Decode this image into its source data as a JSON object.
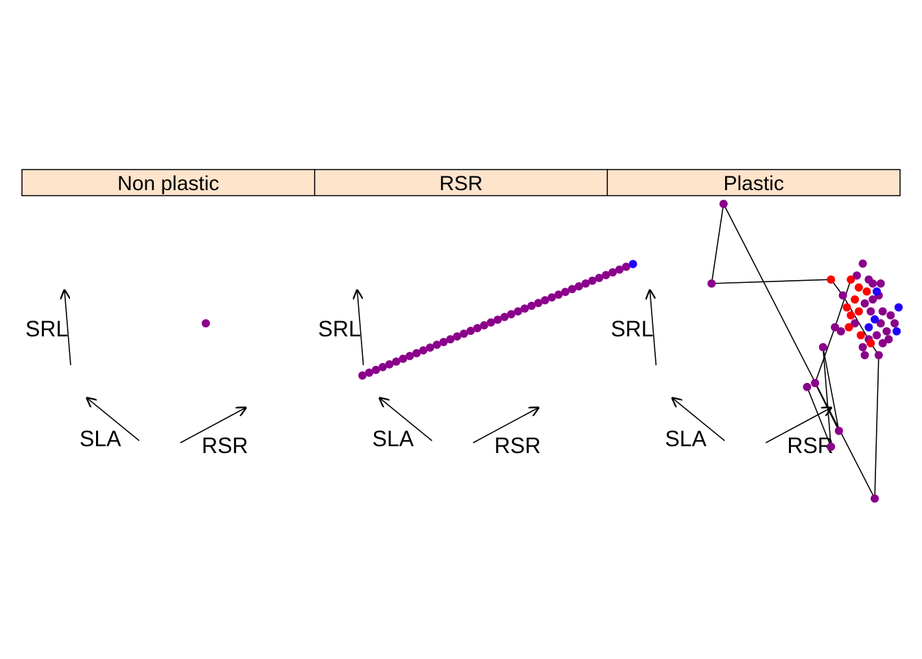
{
  "chart_data": {
    "type": "scatter",
    "colors": {
      "strip_fill": "#FFE4CC",
      "low": "#1F00FF",
      "mid": "#8B008B",
      "high": "#FF0000",
      "arrow": "#000000"
    },
    "arrow_labels": [
      "SRL",
      "SLA",
      "RSR"
    ],
    "panels": [
      {
        "strip": "Non plastic",
        "points": [
          [
            0.0,
            0.0,
            "mid"
          ]
        ],
        "path": []
      },
      {
        "strip": "RSR",
        "points": [
          [
            -0.342,
            -0.131,
            "mid"
          ],
          [
            -0.325,
            -0.124,
            "mid"
          ],
          [
            -0.308,
            -0.117,
            "mid"
          ],
          [
            -0.291,
            -0.11,
            "mid"
          ],
          [
            -0.274,
            -0.103,
            "mid"
          ],
          [
            -0.257,
            -0.096,
            "mid"
          ],
          [
            -0.24,
            -0.089,
            "mid"
          ],
          [
            -0.223,
            -0.082,
            "mid"
          ],
          [
            -0.206,
            -0.075,
            "mid"
          ],
          [
            -0.189,
            -0.068,
            "mid"
          ],
          [
            -0.172,
            -0.061,
            "mid"
          ],
          [
            -0.155,
            -0.054,
            "mid"
          ],
          [
            -0.138,
            -0.047,
            "mid"
          ],
          [
            -0.121,
            -0.04,
            "mid"
          ],
          [
            -0.104,
            -0.033,
            "mid"
          ],
          [
            -0.087,
            -0.026,
            "mid"
          ],
          [
            -0.07,
            -0.019,
            "mid"
          ],
          [
            -0.053,
            -0.012,
            "mid"
          ],
          [
            -0.036,
            -0.005,
            "mid"
          ],
          [
            -0.019,
            0.002,
            "mid"
          ],
          [
            -0.002,
            0.009,
            "mid"
          ],
          [
            0.015,
            0.016,
            "mid"
          ],
          [
            0.032,
            0.023,
            "mid"
          ],
          [
            0.049,
            0.03,
            "mid"
          ],
          [
            0.066,
            0.037,
            "mid"
          ],
          [
            0.083,
            0.044,
            "mid"
          ],
          [
            0.1,
            0.051,
            "mid"
          ],
          [
            0.117,
            0.058,
            "mid"
          ],
          [
            0.134,
            0.065,
            "mid"
          ],
          [
            0.151,
            0.072,
            "mid"
          ],
          [
            0.168,
            0.079,
            "mid"
          ],
          [
            0.185,
            0.086,
            "mid"
          ],
          [
            0.202,
            0.093,
            "mid"
          ],
          [
            0.219,
            0.1,
            "mid"
          ],
          [
            0.236,
            0.107,
            "mid"
          ],
          [
            0.253,
            0.114,
            "mid"
          ],
          [
            0.27,
            0.121,
            "mid"
          ],
          [
            0.287,
            0.128,
            "mid"
          ],
          [
            0.304,
            0.135,
            "mid"
          ],
          [
            0.321,
            0.142,
            "mid"
          ],
          [
            0.338,
            0.149,
            "low"
          ]
        ],
        "path": []
      },
      {
        "strip": "Plastic",
        "points": [
          [
            -0.17,
            0.3,
            "mid"
          ],
          [
            -0.2,
            0.1,
            "mid"
          ],
          [
            0.1,
            0.11,
            "high"
          ],
          [
            0.13,
            0.07,
            "mid"
          ],
          [
            0.04,
            -0.16,
            "mid"
          ],
          [
            0.12,
            -0.27,
            "mid"
          ],
          [
            0.1,
            -0.31,
            "mid"
          ],
          [
            0.08,
            -0.06,
            "mid"
          ],
          [
            0.06,
            -0.15,
            "mid"
          ],
          [
            0.21,
            -0.44,
            "mid"
          ],
          [
            0.18,
            0.15,
            "mid"
          ],
          [
            0.15,
            0.11,
            "high"
          ],
          [
            0.165,
            0.12,
            "mid"
          ],
          [
            0.195,
            0.11,
            "mid"
          ],
          [
            0.205,
            0.1,
            "mid"
          ],
          [
            0.225,
            0.1,
            "mid"
          ],
          [
            0.22,
            0.07,
            "mid"
          ],
          [
            0.19,
            0.08,
            "high"
          ],
          [
            0.17,
            0.09,
            "high"
          ],
          [
            0.16,
            0.06,
            "high"
          ],
          [
            0.14,
            0.04,
            "high"
          ],
          [
            0.15,
            0.02,
            "high"
          ],
          [
            0.17,
            0.03,
            "high"
          ],
          [
            0.16,
            0.0,
            "mid"
          ],
          [
            0.145,
            -0.01,
            "high"
          ],
          [
            0.125,
            -0.02,
            "mid"
          ],
          [
            0.11,
            -0.01,
            "mid"
          ],
          [
            0.175,
            -0.03,
            "high"
          ],
          [
            0.195,
            -0.04,
            "mid"
          ],
          [
            0.18,
            -0.06,
            "mid"
          ],
          [
            0.185,
            -0.08,
            "mid"
          ],
          [
            0.2,
            -0.05,
            "high"
          ],
          [
            0.215,
            -0.03,
            "mid"
          ],
          [
            0.23,
            -0.05,
            "mid"
          ],
          [
            0.24,
            -0.02,
            "mid"
          ],
          [
            0.225,
            0.0,
            "mid"
          ],
          [
            0.21,
            0.01,
            "low"
          ],
          [
            0.2,
            0.03,
            "mid"
          ],
          [
            0.23,
            0.03,
            "mid"
          ],
          [
            0.25,
            0.02,
            "mid"
          ],
          [
            0.26,
            0.0,
            "mid"
          ],
          [
            0.27,
            0.04,
            "low"
          ],
          [
            0.265,
            -0.02,
            "low"
          ],
          [
            0.245,
            -0.04,
            "mid"
          ],
          [
            0.205,
            0.06,
            "mid"
          ],
          [
            0.185,
            0.05,
            "mid"
          ],
          [
            0.215,
            0.08,
            "low"
          ],
          [
            0.195,
            -0.01,
            "low"
          ],
          [
            0.22,
            -0.08,
            "mid"
          ]
        ],
        "path": [
          [
            -0.2,
            0.1
          ],
          [
            -0.17,
            0.3
          ],
          [
            0.21,
            -0.44
          ],
          [
            0.22,
            -0.08
          ],
          [
            0.2,
            -0.05
          ],
          [
            0.13,
            0.07
          ],
          [
            0.1,
            0.11
          ],
          [
            -0.2,
            0.1
          ]
        ],
        "path2": [
          [
            0.04,
            -0.16
          ],
          [
            0.1,
            -0.31
          ],
          [
            0.08,
            -0.06
          ],
          [
            0.12,
            -0.27
          ],
          [
            0.06,
            -0.15
          ],
          [
            0.11,
            -0.01
          ],
          [
            0.15,
            0.11
          ]
        ]
      }
    ]
  }
}
